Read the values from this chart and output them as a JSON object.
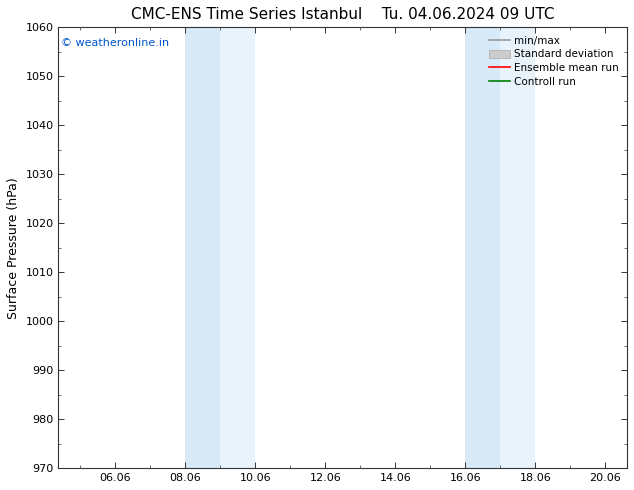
{
  "title": "CMC-ENS Time Series Istanbul",
  "title_right": "Tu. 04.06.2024 09 UTC",
  "ylabel": "Surface Pressure (hPa)",
  "ylim": [
    970,
    1060
  ],
  "yticks": [
    970,
    980,
    990,
    1000,
    1010,
    1020,
    1030,
    1040,
    1050,
    1060
  ],
  "xtick_labels": [
    "06.06",
    "08.06",
    "10.06",
    "12.06",
    "14.06",
    "16.06",
    "18.06",
    "20.06"
  ],
  "xtick_positions": [
    2,
    4,
    6,
    8,
    10,
    12,
    14,
    16
  ],
  "xlim": [
    0.375,
    16.625
  ],
  "watermark": "© weatheronline.in",
  "watermark_color": "#0055cc",
  "shaded_bands": [
    {
      "x_start": 4.0,
      "x_end": 5.0,
      "color": "#d8eaf8"
    },
    {
      "x_start": 5.0,
      "x_end": 6.0,
      "color": "#e8f3fb"
    },
    {
      "x_start": 12.0,
      "x_end": 13.0,
      "color": "#d8eaf8"
    },
    {
      "x_start": 13.0,
      "x_end": 14.0,
      "color": "#e8f3fb"
    }
  ],
  "legend_items": [
    {
      "label": "min/max",
      "color": "#999999",
      "linewidth": 1.2,
      "linestyle": "-",
      "type": "line"
    },
    {
      "label": "Standard deviation",
      "color": "#cccccc",
      "type": "bar"
    },
    {
      "label": "Ensemble mean run",
      "color": "red",
      "linewidth": 1.2,
      "linestyle": "-",
      "type": "line"
    },
    {
      "label": "Controll run",
      "color": "green",
      "linewidth": 1.2,
      "linestyle": "-",
      "type": "line"
    }
  ],
  "bg_color": "white",
  "spine_color": "#333333",
  "tick_color": "#333333",
  "title_fontsize": 11,
  "ylabel_fontsize": 9,
  "tick_fontsize": 8
}
